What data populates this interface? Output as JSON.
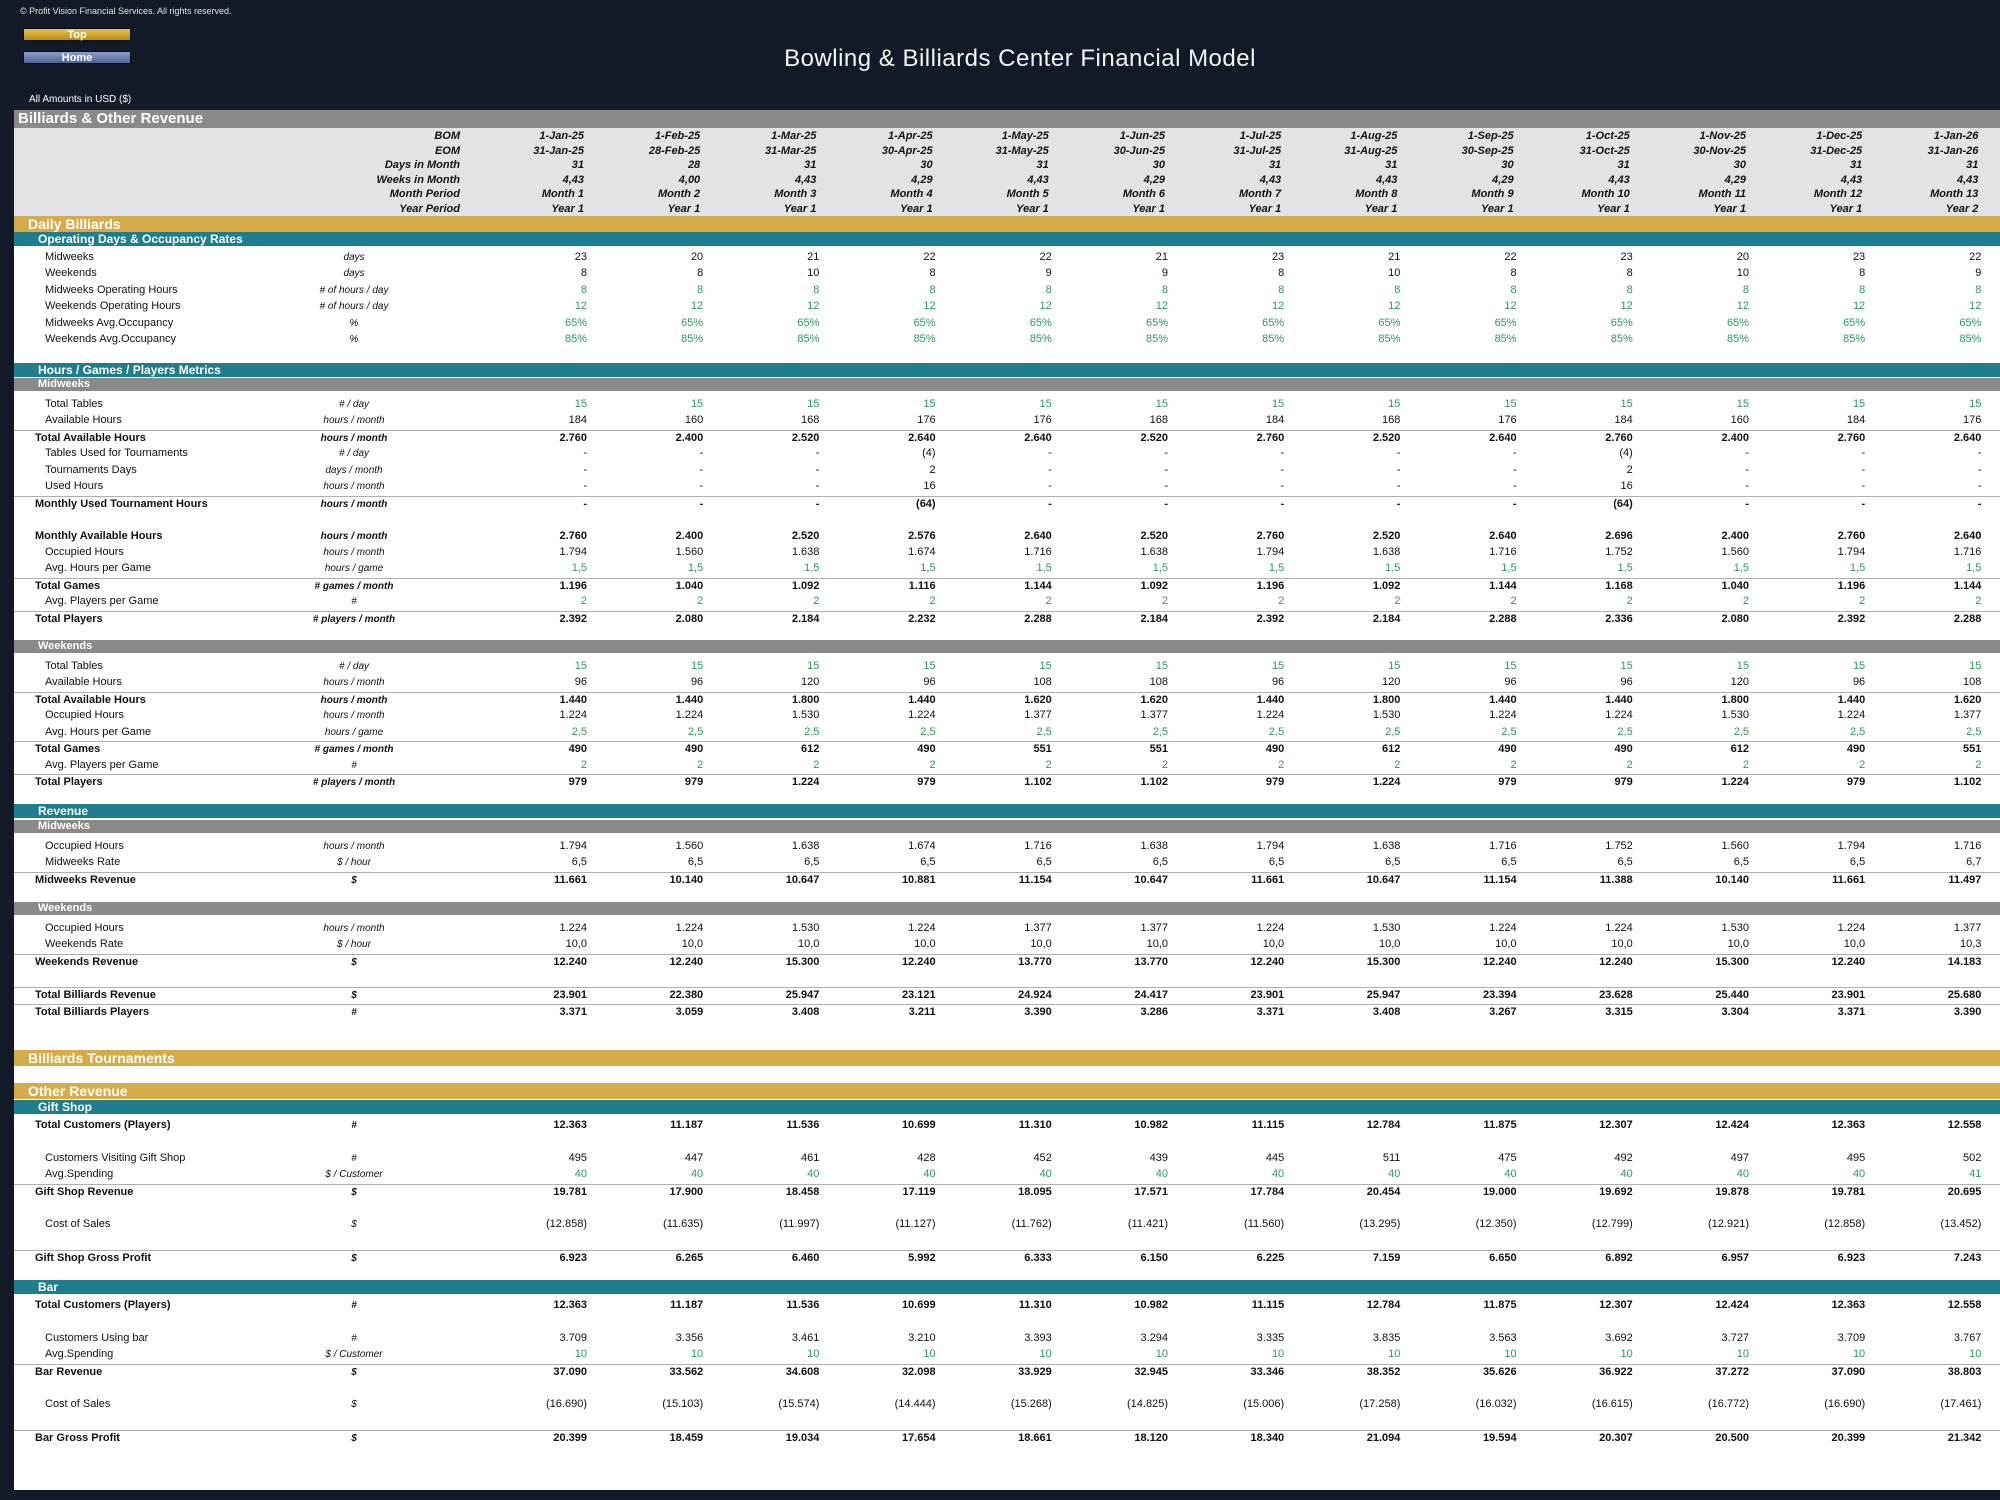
{
  "header": {
    "copyright": "© Profit Vision Financial Services. All rights reserved.",
    "top_button": "Top",
    "home_button": "Home",
    "title": "Bowling & Billiards Center Financial Model",
    "amounts_note": "All Amounts in  USD ($)"
  },
  "section_title": "Billiards & Other Revenue",
  "colors": {
    "gold": "#d5ac49",
    "teal": "#1e7d8e",
    "grey": "#8a8a8a",
    "green": "#2c9a5c",
    "dark": "#121a28"
  },
  "timeline": [
    {
      "label": "BOM",
      "values": [
        "1-Jan-25",
        "1-Feb-25",
        "1-Mar-25",
        "1-Apr-25",
        "1-May-25",
        "1-Jun-25",
        "1-Jul-25",
        "1-Aug-25",
        "1-Sep-25",
        "1-Oct-25",
        "1-Nov-25",
        "1-Dec-25",
        "1-Jan-26"
      ]
    },
    {
      "label": "EOM",
      "values": [
        "31-Jan-25",
        "28-Feb-25",
        "31-Mar-25",
        "30-Apr-25",
        "31-May-25",
        "30-Jun-25",
        "31-Jul-25",
        "31-Aug-25",
        "30-Sep-25",
        "31-Oct-25",
        "30-Nov-25",
        "31-Dec-25",
        "31-Jan-26"
      ]
    },
    {
      "label": "Days in Month",
      "values": [
        "31",
        "28",
        "31",
        "30",
        "31",
        "30",
        "31",
        "31",
        "30",
        "31",
        "30",
        "31",
        "31"
      ]
    },
    {
      "label": "Weeks in Month",
      "values": [
        "4,43",
        "4,00",
        "4,43",
        "4,29",
        "4,43",
        "4,29",
        "4,43",
        "4,43",
        "4,29",
        "4,43",
        "4,29",
        "4,43",
        "4,43"
      ]
    },
    {
      "label": "Month Period",
      "values": [
        "Month 1",
        "Month 2",
        "Month 3",
        "Month 4",
        "Month 5",
        "Month 6",
        "Month 7",
        "Month 8",
        "Month 9",
        "Month 10",
        "Month 11",
        "Month 12",
        "Month 13"
      ]
    },
    {
      "label": "Year Period",
      "values": [
        "Year 1",
        "Year 1",
        "Year 1",
        "Year 1",
        "Year 1",
        "Year 1",
        "Year 1",
        "Year 1",
        "Year 1",
        "Year 1",
        "Year 1",
        "Year 1",
        "Year 2"
      ]
    }
  ],
  "bands": {
    "daily": "Daily Billiards",
    "tournaments": "Billiards Tournaments",
    "other": "Other Revenue"
  },
  "subs": {
    "operating": "Operating Days & Occupancy Rates",
    "metrics": "Hours / Games / Players Metrics",
    "revenue": "Revenue",
    "gift": "Gift Shop",
    "bar": "Bar"
  },
  "greys": {
    "midweeks": "Midweeks",
    "weekends": "Weekends"
  },
  "rows": {
    "op_mid": {
      "label": "Midweeks",
      "unit": "days",
      "values": [
        "23",
        "20",
        "21",
        "22",
        "22",
        "21",
        "23",
        "21",
        "22",
        "23",
        "20",
        "23",
        "22"
      ]
    },
    "op_wk": {
      "label": "Weekends",
      "unit": "days",
      "values": [
        "8",
        "8",
        "10",
        "8",
        "9",
        "9",
        "8",
        "10",
        "8",
        "8",
        "10",
        "8",
        "9"
      ]
    },
    "op_mid_hours": {
      "label": "Midweeks Operating Hours",
      "unit": "# of hours / day",
      "values": [
        "8",
        "8",
        "8",
        "8",
        "8",
        "8",
        "8",
        "8",
        "8",
        "8",
        "8",
        "8",
        "8"
      ]
    },
    "op_wk_hours": {
      "label": "Weekends Operating Hours",
      "unit": "# of hours / day",
      "values": [
        "12",
        "12",
        "12",
        "12",
        "12",
        "12",
        "12",
        "12",
        "12",
        "12",
        "12",
        "12",
        "12"
      ]
    },
    "op_mid_occ": {
      "label": "Midweeks Avg.Occupancy",
      "unit": "%",
      "values": [
        "65%",
        "65%",
        "65%",
        "65%",
        "65%",
        "65%",
        "65%",
        "65%",
        "65%",
        "65%",
        "65%",
        "65%",
        "65%"
      ]
    },
    "op_wk_occ": {
      "label": "Weekends Avg.Occupancy",
      "unit": "%",
      "values": [
        "85%",
        "85%",
        "85%",
        "85%",
        "85%",
        "85%",
        "85%",
        "85%",
        "85%",
        "85%",
        "85%",
        "85%",
        "85%"
      ]
    },
    "m_tables": {
      "label": "Total Tables",
      "unit": "# / day",
      "values": [
        "15",
        "15",
        "15",
        "15",
        "15",
        "15",
        "15",
        "15",
        "15",
        "15",
        "15",
        "15",
        "15"
      ]
    },
    "m_avail": {
      "label": "Available Hours",
      "unit": "hours / month",
      "values": [
        "184",
        "160",
        "168",
        "176",
        "176",
        "168",
        "184",
        "168",
        "176",
        "184",
        "160",
        "184",
        "176"
      ]
    },
    "m_total_avail": {
      "label": "Total Available Hours",
      "unit": "hours / month",
      "values": [
        "2.760",
        "2.400",
        "2.520",
        "2.640",
        "2.640",
        "2.520",
        "2.760",
        "2.520",
        "2.640",
        "2.760",
        "2.400",
        "2.760",
        "2.640"
      ]
    },
    "m_tourn_tables": {
      "label": "Tables Used for Tournaments",
      "unit": "# / day",
      "values": [
        "-",
        "-",
        "-",
        "(4)",
        "-",
        "-",
        "-",
        "-",
        "-",
        "(4)",
        "-",
        "-",
        "-"
      ]
    },
    "m_tourn_days": {
      "label": "Tournaments Days",
      "unit": "days / month",
      "values": [
        "-",
        "-",
        "-",
        "2",
        "-",
        "-",
        "-",
        "-",
        "-",
        "2",
        "-",
        "-",
        "-"
      ]
    },
    "m_used_hours": {
      "label": "Used Hours",
      "unit": "hours / month",
      "values": [
        "-",
        "-",
        "-",
        "16",
        "-",
        "-",
        "-",
        "-",
        "-",
        "16",
        "-",
        "-",
        "-"
      ]
    },
    "m_monthly_used": {
      "label": "Monthly Used Tournament Hours",
      "unit": "hours / month",
      "values": [
        "-",
        "-",
        "-",
        "(64)",
        "-",
        "-",
        "-",
        "-",
        "-",
        "(64)",
        "-",
        "-",
        "-"
      ]
    },
    "m_monthly_avail": {
      "label": "Monthly Available Hours",
      "unit": "hours / month",
      "values": [
        "2.760",
        "2.400",
        "2.520",
        "2.576",
        "2.640",
        "2.520",
        "2.760",
        "2.520",
        "2.640",
        "2.696",
        "2.400",
        "2.760",
        "2.640"
      ]
    },
    "m_occupied": {
      "label": "Occupied Hours",
      "unit": "hours / month",
      "values": [
        "1.794",
        "1.560",
        "1.638",
        "1.674",
        "1.716",
        "1.638",
        "1.794",
        "1.638",
        "1.716",
        "1.752",
        "1.560",
        "1.794",
        "1.716"
      ]
    },
    "m_avg_hours": {
      "label": "Avg. Hours per Game",
      "unit": "hours / game",
      "values": [
        "1,5",
        "1,5",
        "1,5",
        "1,5",
        "1,5",
        "1,5",
        "1,5",
        "1,5",
        "1,5",
        "1,5",
        "1,5",
        "1,5",
        "1,5"
      ]
    },
    "m_games": {
      "label": "Total Games",
      "unit": "# games / month",
      "values": [
        "1.196",
        "1.040",
        "1.092",
        "1.116",
        "1.144",
        "1.092",
        "1.196",
        "1.092",
        "1.144",
        "1.168",
        "1.040",
        "1.196",
        "1.144"
      ]
    },
    "m_avg_players": {
      "label": "Avg. Players per Game",
      "unit": "#",
      "values": [
        "2",
        "2",
        "2",
        "2",
        "2",
        "2",
        "2",
        "2",
        "2",
        "2",
        "2",
        "2",
        "2"
      ]
    },
    "m_players": {
      "label": "Total Players",
      "unit": "# players / month",
      "values": [
        "2.392",
        "2.080",
        "2.184",
        "2.232",
        "2.288",
        "2.184",
        "2.392",
        "2.184",
        "2.288",
        "2.336",
        "2.080",
        "2.392",
        "2.288"
      ]
    },
    "w_tables": {
      "label": "Total Tables",
      "unit": "# / day",
      "values": [
        "15",
        "15",
        "15",
        "15",
        "15",
        "15",
        "15",
        "15",
        "15",
        "15",
        "15",
        "15",
        "15"
      ]
    },
    "w_avail": {
      "label": "Available Hours",
      "unit": "hours / month",
      "values": [
        "96",
        "96",
        "120",
        "96",
        "108",
        "108",
        "96",
        "120",
        "96",
        "96",
        "120",
        "96",
        "108"
      ]
    },
    "w_total_avail": {
      "label": "Total Available Hours",
      "unit": "hours / month",
      "values": [
        "1.440",
        "1.440",
        "1.800",
        "1.440",
        "1.620",
        "1.620",
        "1.440",
        "1.800",
        "1.440",
        "1.440",
        "1.800",
        "1.440",
        "1.620"
      ]
    },
    "w_occupied": {
      "label": "Occupied Hours",
      "unit": "hours / month",
      "values": [
        "1.224",
        "1.224",
        "1.530",
        "1.224",
        "1.377",
        "1.377",
        "1.224",
        "1.530",
        "1.224",
        "1.224",
        "1.530",
        "1.224",
        "1.377"
      ]
    },
    "w_avg_hours": {
      "label": "Avg. Hours per Game",
      "unit": "hours / game",
      "values": [
        "2,5",
        "2,5",
        "2,5",
        "2,5",
        "2,5",
        "2,5",
        "2,5",
        "2,5",
        "2,5",
        "2,5",
        "2,5",
        "2,5",
        "2,5"
      ]
    },
    "w_games": {
      "label": "Total Games",
      "unit": "# games / month",
      "values": [
        "490",
        "490",
        "612",
        "490",
        "551",
        "551",
        "490",
        "612",
        "490",
        "490",
        "612",
        "490",
        "551"
      ]
    },
    "w_avg_players": {
      "label": "Avg. Players per Game",
      "unit": "#",
      "values": [
        "2",
        "2",
        "2",
        "2",
        "2",
        "2",
        "2",
        "2",
        "2",
        "2",
        "2",
        "2",
        "2"
      ]
    },
    "w_players": {
      "label": "Total Players",
      "unit": "# players / month",
      "values": [
        "979",
        "979",
        "1.224",
        "979",
        "1.102",
        "1.102",
        "979",
        "1.224",
        "979",
        "979",
        "1.224",
        "979",
        "1.102"
      ]
    },
    "rm_occupied": {
      "label": "Occupied Hours",
      "unit": "hours / month",
      "values": [
        "1.794",
        "1.560",
        "1.638",
        "1.674",
        "1.716",
        "1.638",
        "1.794",
        "1.638",
        "1.716",
        "1.752",
        "1.560",
        "1.794",
        "1.716"
      ]
    },
    "rm_rate": {
      "label": "Midweeks Rate",
      "unit": "$ / hour",
      "values": [
        "6,5",
        "6,5",
        "6,5",
        "6,5",
        "6,5",
        "6,5",
        "6,5",
        "6,5",
        "6,5",
        "6,5",
        "6,5",
        "6,5",
        "6,7"
      ]
    },
    "rm_revenue": {
      "label": "Midweeks Revenue",
      "unit": "$",
      "values": [
        "11.661",
        "10.140",
        "10.647",
        "10.881",
        "11.154",
        "10.647",
        "11.661",
        "10.647",
        "11.154",
        "11.388",
        "10.140",
        "11.661",
        "11.497"
      ]
    },
    "rw_occupied": {
      "label": "Occupied Hours",
      "unit": "hours / month",
      "values": [
        "1.224",
        "1.224",
        "1.530",
        "1.224",
        "1.377",
        "1.377",
        "1.224",
        "1.530",
        "1.224",
        "1.224",
        "1.530",
        "1.224",
        "1.377"
      ]
    },
    "rw_rate": {
      "label": "Weekends Rate",
      "unit": "$ / hour",
      "values": [
        "10,0",
        "10,0",
        "10,0",
        "10,0",
        "10,0",
        "10,0",
        "10,0",
        "10,0",
        "10,0",
        "10,0",
        "10,0",
        "10,0",
        "10,3"
      ]
    },
    "rw_revenue": {
      "label": "Weekends Revenue",
      "unit": "$",
      "values": [
        "12.240",
        "12.240",
        "15.300",
        "12.240",
        "13.770",
        "13.770",
        "12.240",
        "15.300",
        "12.240",
        "12.240",
        "15.300",
        "12.240",
        "14.183"
      ]
    },
    "total_billiards_rev": {
      "label": "Total Billiards Revenue",
      "unit": "$",
      "values": [
        "23.901",
        "22.380",
        "25.947",
        "23.121",
        "24.924",
        "24.417",
        "23.901",
        "25.947",
        "23.394",
        "23.628",
        "25.440",
        "23.901",
        "25.680"
      ]
    },
    "total_billiards_players": {
      "label": "Total Billiards Players",
      "unit": "#",
      "values": [
        "3.371",
        "3.059",
        "3.408",
        "3.211",
        "3.390",
        "3.286",
        "3.371",
        "3.408",
        "3.267",
        "3.315",
        "3.304",
        "3.371",
        "3.390"
      ]
    },
    "g_customers": {
      "label": "Total Customers (Players)",
      "unit": "#",
      "values": [
        "12.363",
        "11.187",
        "11.536",
        "10.699",
        "11.310",
        "10.982",
        "11.115",
        "12.784",
        "11.875",
        "12.307",
        "12.424",
        "12.363",
        "12.558"
      ]
    },
    "g_visiting": {
      "label": "Customers Visiting Gift Shop",
      "unit": "#",
      "values": [
        "495",
        "447",
        "461",
        "428",
        "452",
        "439",
        "445",
        "511",
        "475",
        "492",
        "497",
        "495",
        "502"
      ]
    },
    "g_spending": {
      "label": "Avg.Spending",
      "unit": "$ / Customer",
      "values": [
        "40",
        "40",
        "40",
        "40",
        "40",
        "40",
        "40",
        "40",
        "40",
        "40",
        "40",
        "40",
        "41"
      ]
    },
    "g_revenue": {
      "label": "Gift Shop Revenue",
      "unit": "$",
      "values": [
        "19.781",
        "17.900",
        "18.458",
        "17.119",
        "18.095",
        "17.571",
        "17.784",
        "20.454",
        "19.000",
        "19.692",
        "19.878",
        "19.781",
        "20.695"
      ]
    },
    "g_cos": {
      "label": "Cost of Sales",
      "unit": "$",
      "values": [
        "(12.858)",
        "(11.635)",
        "(11.997)",
        "(11.127)",
        "(11.762)",
        "(11.421)",
        "(11.560)",
        "(13.295)",
        "(12.350)",
        "(12.799)",
        "(12.921)",
        "(12.858)",
        "(13.452)"
      ]
    },
    "g_profit": {
      "label": "Gift Shop Gross Profit",
      "unit": "$",
      "values": [
        "6.923",
        "6.265",
        "6.460",
        "5.992",
        "6.333",
        "6.150",
        "6.225",
        "7.159",
        "6.650",
        "6.892",
        "6.957",
        "6.923",
        "7.243"
      ]
    },
    "b_customers": {
      "label": "Total Customers (Players)",
      "unit": "#",
      "values": [
        "12.363",
        "11.187",
        "11.536",
        "10.699",
        "11.310",
        "10.982",
        "11.115",
        "12.784",
        "11.875",
        "12.307",
        "12.424",
        "12.363",
        "12.558"
      ]
    },
    "b_using": {
      "label": "Customers Using bar",
      "unit": "#",
      "values": [
        "3.709",
        "3.356",
        "3.461",
        "3.210",
        "3.393",
        "3.294",
        "3.335",
        "3.835",
        "3.563",
        "3.692",
        "3.727",
        "3.709",
        "3.767"
      ]
    },
    "b_spending": {
      "label": "Avg.Spending",
      "unit": "$ / Customer",
      "values": [
        "10",
        "10",
        "10",
        "10",
        "10",
        "10",
        "10",
        "10",
        "10",
        "10",
        "10",
        "10",
        "10"
      ]
    },
    "b_revenue": {
      "label": "Bar Revenue",
      "unit": "$",
      "values": [
        "37.090",
        "33.562",
        "34.608",
        "32.098",
        "33.929",
        "32.945",
        "33.346",
        "38.352",
        "35.626",
        "36.922",
        "37.272",
        "37.090",
        "38.803"
      ]
    },
    "b_cos": {
      "label": "Cost of Sales",
      "unit": "$",
      "values": [
        "(16.690)",
        "(15.103)",
        "(15.574)",
        "(14.444)",
        "(15.268)",
        "(14.825)",
        "(15.006)",
        "(17.258)",
        "(16.032)",
        "(16.615)",
        "(16.772)",
        "(16.690)",
        "(17.461)"
      ]
    },
    "b_profit": {
      "label": "Bar Gross Profit",
      "unit": "$",
      "values": [
        "20.399",
        "18.459",
        "19.034",
        "17.654",
        "18.661",
        "18.120",
        "18.340",
        "21.094",
        "19.594",
        "20.307",
        "20.500",
        "20.399",
        "21.342"
      ]
    }
  }
}
